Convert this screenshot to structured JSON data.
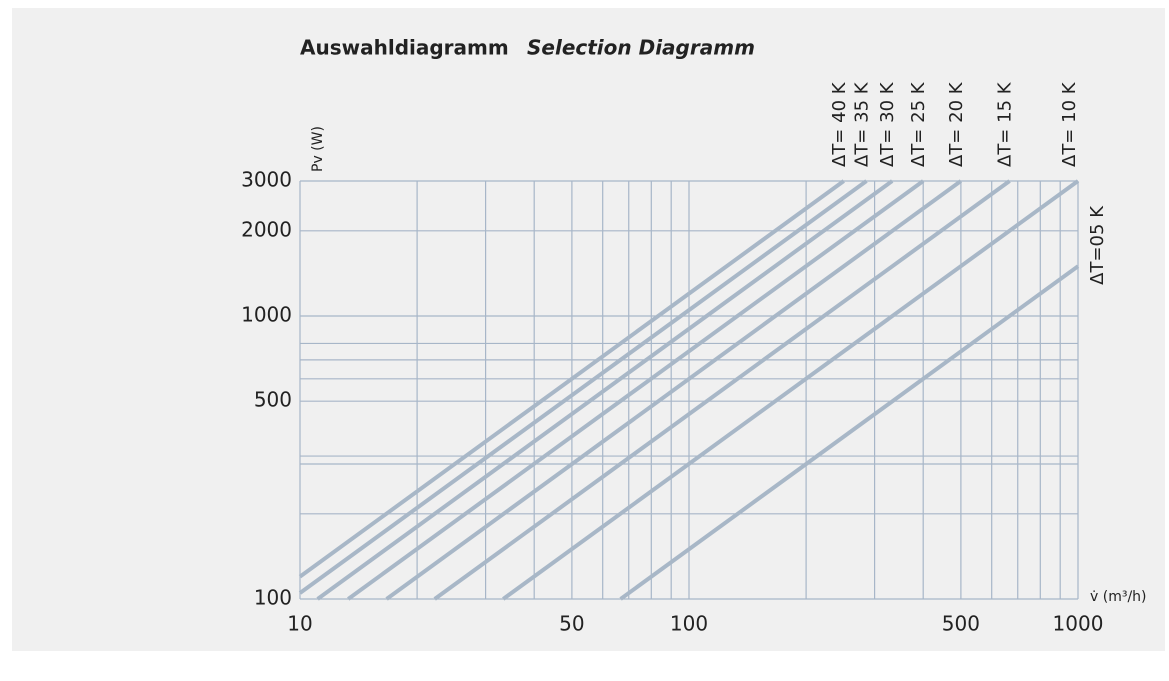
{
  "chart_data": {
    "type": "line",
    "title": "Auswahldiagramm",
    "subtitle": "Selection Diagramm",
    "ylabel": "Pv (W)",
    "xlabel": "v̇ (m³/h)",
    "xlog": true,
    "ylog": true,
    "grid": true,
    "xlim": [
      10,
      1000
    ],
    "ylim": [
      100,
      3000
    ],
    "xticks": [
      10,
      50,
      100,
      500,
      1000
    ],
    "yticks": [
      100,
      500,
      1000,
      2000,
      3000
    ],
    "xminor": [
      20,
      30,
      40,
      60,
      70,
      80,
      90,
      200,
      300,
      400,
      600,
      700,
      800,
      900
    ],
    "yminor": [
      200,
      300,
      320,
      600,
      700,
      800
    ],
    "color": "#a8b7c7",
    "series": [
      {
        "name": "ΔT= 40 K",
        "x": [
          10,
          250
        ],
        "values": [
          120,
          3000
        ]
      },
      {
        "name": "ΔT= 35 K",
        "x": [
          10,
          286
        ],
        "values": [
          105,
          3000
        ]
      },
      {
        "name": "ΔT= 30 K",
        "x": [
          11.1,
          333
        ],
        "values": [
          100,
          3000
        ]
      },
      {
        "name": "ΔT= 25 K",
        "x": [
          13.3,
          400
        ],
        "values": [
          100,
          3000
        ]
      },
      {
        "name": "ΔT= 20 K",
        "x": [
          16.7,
          500
        ],
        "values": [
          100,
          3000
        ]
      },
      {
        "name": "ΔT= 15 K",
        "x": [
          22.2,
          667
        ],
        "values": [
          100,
          3000
        ]
      },
      {
        "name": "ΔT= 10 K",
        "x": [
          33.3,
          1000
        ],
        "values": [
          100,
          3000
        ]
      },
      {
        "name": "ΔT=05 K",
        "x": [
          66.7,
          1000
        ],
        "values": [
          100,
          1500
        ]
      }
    ]
  }
}
